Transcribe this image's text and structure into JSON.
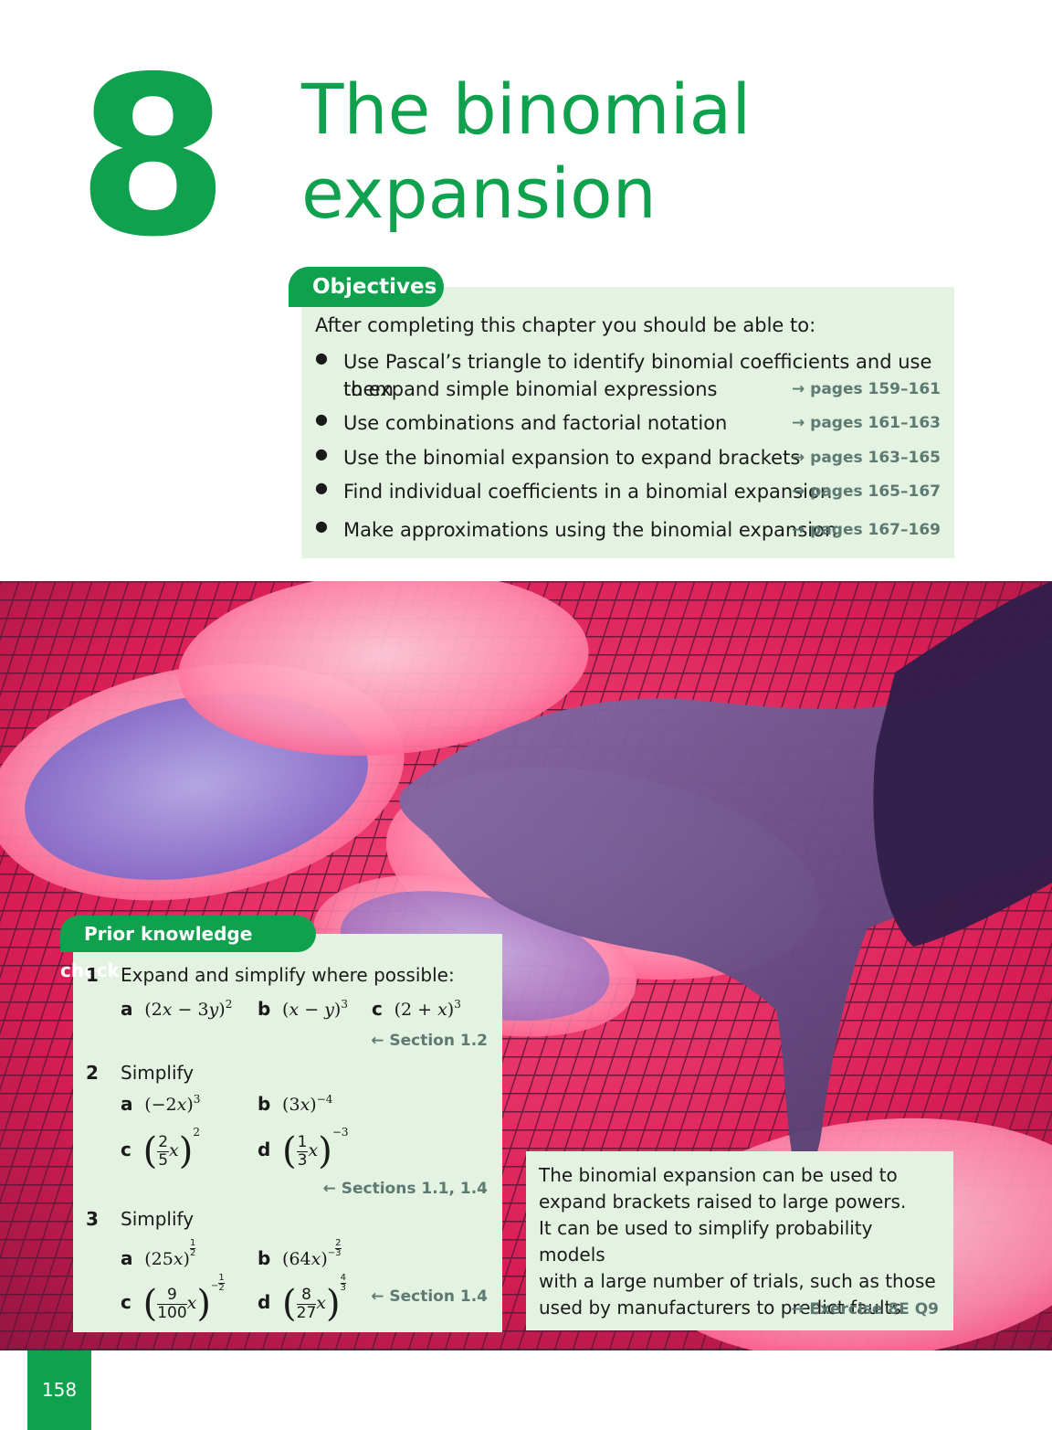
{
  "chapter": {
    "number": "8",
    "title_line1": "The binomial",
    "title_line2": "expansion"
  },
  "objectives": {
    "heading": "Objectives",
    "intro": "After completing this chapter you should be able to:",
    "items": [
      {
        "text1": "Use Pascal’s triangle to identify binomial coefficients and use them",
        "text2": "to expand simple binomial expressions",
        "ref": "→ pages 159–161"
      },
      {
        "text1": "Use combinations and factorial notation",
        "ref": "→ pages 161–163"
      },
      {
        "text1": "Use the binomial expansion to expand brackets",
        "ref": "→ pages 163–165"
      },
      {
        "text1": "Find individual coefficients in a binomial expansion",
        "ref": "→ pages 165–167"
      },
      {
        "text1": "Make approximations using the binomial expansion",
        "ref": "→ pages 167–169"
      }
    ]
  },
  "prior_knowledge": {
    "heading": "Prior knowledge check",
    "q1": {
      "num": "1",
      "text": "Expand and simplify where possible:",
      "a": "a",
      "b": "b",
      "c": "c",
      "ref": "← Section 1.2"
    },
    "q2": {
      "num": "2",
      "text": "Simplify",
      "a": "a",
      "b": "b",
      "c": "c",
      "d": "d",
      "ref": "← Sections 1.1, 1.4"
    },
    "q3": {
      "num": "3",
      "text": "Simplify",
      "a": "a",
      "b": "b",
      "c": "c",
      "d": "d",
      "ref": "← Section 1.4"
    }
  },
  "info": {
    "lines": [
      "The binomial expansion can be used to",
      "expand brackets raised to large powers.",
      "It can be used to simplify probability models",
      "with a large number of trials, such as those",
      "used by manufacturers to predict faults."
    ],
    "ref": "→ Exercise 8E Q9"
  },
  "page_number": "158",
  "colors": {
    "accent": "#10a14f",
    "panel": "#e3f2e1",
    "photo_base": "#e8245a"
  }
}
